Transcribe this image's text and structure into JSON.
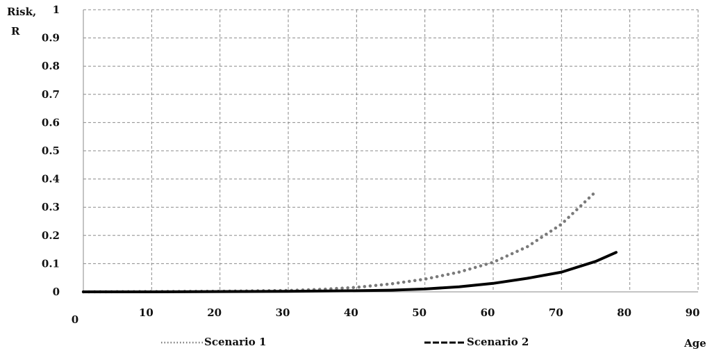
{
  "chart_data": {
    "type": "line",
    "title": "",
    "ylabel_line1": "Risk,",
    "ylabel_line2": "R",
    "xlabel": "Age",
    "xlim": [
      0,
      90
    ],
    "ylim": [
      0,
      1
    ],
    "xticks": [
      0,
      10,
      20,
      30,
      40,
      50,
      60,
      70,
      80,
      90
    ],
    "yticks": [
      0,
      0.1,
      0.2,
      0.3,
      0.4,
      0.5,
      0.6,
      0.7,
      0.8,
      0.9,
      1
    ],
    "ytick_labels": [
      "0",
      "0.1",
      "0.2",
      "0.3",
      "0.4",
      "0.5",
      "0.6",
      "0.7",
      "0.8",
      "0.9",
      "1"
    ],
    "xtick_labels": [
      "0",
      "10",
      "20",
      "30",
      "40",
      "50",
      "60",
      "70",
      "80",
      "90"
    ],
    "grid": true,
    "legend_position": "bottom",
    "series": [
      {
        "name": "Scenario 1",
        "style": "dotted",
        "color": "#7a7a7a",
        "x": [
          0,
          10,
          20,
          30,
          35,
          40,
          45,
          50,
          55,
          60,
          65,
          70,
          75
        ],
        "y": [
          0,
          0.001,
          0.002,
          0.005,
          0.009,
          0.016,
          0.028,
          0.045,
          0.07,
          0.105,
          0.16,
          0.24,
          0.355
        ]
      },
      {
        "name": "Scenario 2",
        "style": "solid",
        "color": "#000000",
        "x": [
          0,
          10,
          20,
          30,
          40,
          45,
          50,
          55,
          60,
          65,
          70,
          75,
          78
        ],
        "y": [
          0,
          0,
          0.001,
          0.002,
          0.004,
          0.006,
          0.01,
          0.018,
          0.03,
          0.048,
          0.07,
          0.108,
          0.14
        ]
      }
    ]
  }
}
